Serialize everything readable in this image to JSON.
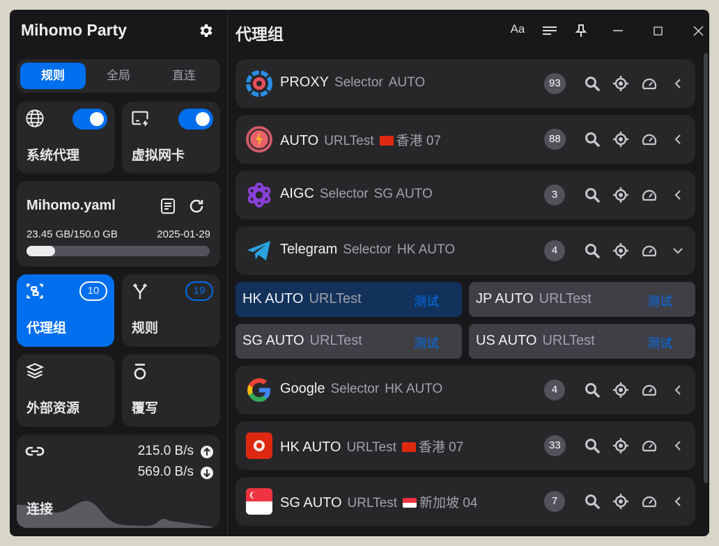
{
  "app": {
    "title": "Mihomo Party"
  },
  "modes": [
    {
      "label": "规则",
      "active": true
    },
    {
      "label": "全局",
      "active": false
    },
    {
      "label": "直连",
      "active": false
    }
  ],
  "tiles": {
    "sysproxy": {
      "label": "系统代理",
      "enabled": true,
      "icon": "globe-icon"
    },
    "tun": {
      "label": "虚拟网卡",
      "enabled": true,
      "icon": "network-card-icon"
    },
    "profile": {
      "name": "Mihomo.yaml",
      "usage": "23.45 GB/150.0 GB",
      "date": "2025-01-29",
      "usage_fraction": 0.156
    },
    "proxies": {
      "label": "代理组",
      "count": "10"
    },
    "rules": {
      "label": "规则",
      "count": "19"
    },
    "resources": {
      "label": "外部资源"
    },
    "override": {
      "label": "覆写"
    },
    "connections": {
      "label": "连接",
      "up": "215.0 B/s",
      "down": "569.0 B/s"
    }
  },
  "main": {
    "title": "代理组",
    "toolbar": {
      "font": "Aa"
    },
    "groups": [
      {
        "name": "PROXY",
        "type": "Selector",
        "now": "AUTO",
        "count": "93",
        "icon": "proxy-icon",
        "expanded": false
      },
      {
        "name": "AUTO",
        "type": "URLTest",
        "flag": "hk",
        "now": "香港 07",
        "count": "88",
        "icon": "auto-icon",
        "expanded": false
      },
      {
        "name": "AIGC",
        "type": "Selector",
        "now": "SG AUTO",
        "count": "3",
        "icon": "openai-icon",
        "expanded": false
      },
      {
        "name": "Telegram",
        "type": "Selector",
        "now": "HK AUTO",
        "count": "4",
        "icon": "telegram-icon",
        "expanded": true
      },
      {
        "name": "Google",
        "type": "Selector",
        "now": "HK AUTO",
        "count": "4",
        "icon": "google-icon",
        "expanded": false
      },
      {
        "name": "HK AUTO",
        "type": "URLTest",
        "flag": "hk",
        "now": "香港 07",
        "count": "33",
        "icon": "hk-flag-icon",
        "expanded": false
      },
      {
        "name": "SG AUTO",
        "type": "URLTest",
        "flag": "sg",
        "now": "新加坡 04",
        "count": "7",
        "icon": "sg-flag-icon",
        "expanded": false
      }
    ],
    "telegram_proxies": [
      {
        "name": "HK AUTO",
        "type": "URLTest",
        "test": "测试",
        "selected": true
      },
      {
        "name": "JP AUTO",
        "type": "URLTest",
        "test": "测试",
        "selected": false
      },
      {
        "name": "SG AUTO",
        "type": "URLTest",
        "test": "测试",
        "selected": false
      },
      {
        "name": "US AUTO",
        "type": "URLTest",
        "test": "测试",
        "selected": false
      }
    ]
  },
  "colors": {
    "accent": "#006fee",
    "bg": "#18181b",
    "card": "#27272a"
  }
}
